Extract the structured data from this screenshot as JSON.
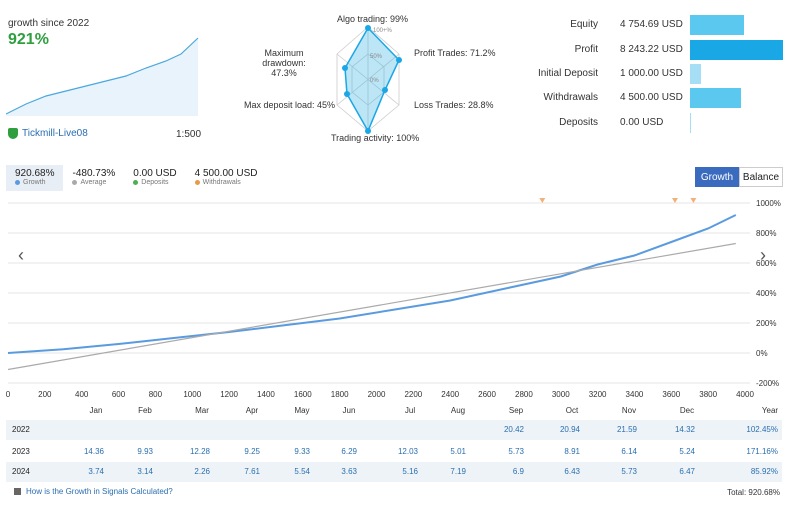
{
  "header": {
    "growth_since": "growth since 2022",
    "growth_value": "921%",
    "account_name": "Tickmill-Live08",
    "leverage": "1:500"
  },
  "radar": {
    "labels": {
      "algo": "Algo trading: 99%",
      "profit_trades": "Profit Trades: 71.2%",
      "loss_trades": "Loss Trades: 28.8%",
      "trading_activity": "Trading activity: 100%",
      "max_deposit_load": "Max deposit load: 45%",
      "max_drawdown": "Maximum drawdown:",
      "max_drawdown_val": "47.3%"
    },
    "ring_labels": [
      "100+%",
      "50%",
      "0%"
    ]
  },
  "stats": [
    {
      "label": "Equity",
      "value": "4 754.69 USD",
      "fraction": 0.58,
      "color": "#5bc8f0"
    },
    {
      "label": "Profit",
      "value": "8 243.22 USD",
      "fraction": 1.0,
      "color": "#1aa7e6"
    },
    {
      "label": "Initial Deposit",
      "value": "1 000.00 USD",
      "fraction": 0.12,
      "color": "#a6def5"
    },
    {
      "label": "Withdrawals",
      "value": "4 500.00 USD",
      "fraction": 0.55,
      "color": "#5bc8f0"
    },
    {
      "label": "Deposits",
      "value": "0.00 USD",
      "fraction": 0.0,
      "color": "#a6def5"
    }
  ],
  "summary": [
    {
      "value": "920.68%",
      "label": "Growth",
      "dot": "#5a9be0"
    },
    {
      "value": "-480.73%",
      "label": "Average",
      "dot": "#aaaaaa"
    },
    {
      "value": "0.00 USD",
      "label": "Deposits",
      "dot": "#4caf50"
    },
    {
      "value": "4 500.00 USD",
      "label": "Withdrawals",
      "dot": "#e69a4a"
    }
  ],
  "toggle": {
    "growth": "Growth",
    "balance": "Balance"
  },
  "chart_data": {
    "type": "line",
    "x_ticks": [
      0,
      200,
      400,
      600,
      800,
      1000,
      1200,
      1400,
      1600,
      1800,
      2000,
      2200,
      2400,
      2600,
      2800,
      3000,
      3200,
      3400,
      3600,
      3800,
      4000
    ],
    "y_ticks": [
      "1000%",
      "800%",
      "600%",
      "400%",
      "200%",
      "0%",
      "-200%"
    ],
    "xlim": [
      0,
      4000
    ],
    "ylim": [
      -200,
      1000
    ],
    "series": [
      {
        "color": "#5a9be0",
        "x": [
          0,
          300,
          600,
          900,
          1200,
          1500,
          1800,
          2100,
          2400,
          2700,
          3000,
          3200,
          3400,
          3600,
          3800,
          3950
        ],
        "y": [
          0,
          25,
          60,
          100,
          140,
          185,
          230,
          290,
          350,
          430,
          510,
          590,
          650,
          740,
          830,
          920
        ]
      },
      {
        "color": "#aaaaaa",
        "x": [
          0,
          3950
        ],
        "y": [
          -110,
          730
        ]
      }
    ],
    "withdrawal_markers_x": [
      2900,
      3620,
      3720
    ]
  },
  "monthly": {
    "months": [
      "Jan",
      "Feb",
      "Mar",
      "Apr",
      "May",
      "Jun",
      "Jul",
      "Aug",
      "Sep",
      "Oct",
      "Nov",
      "Dec",
      "Year"
    ],
    "rows": [
      {
        "year": "2022",
        "cells": [
          "",
          "",
          "",
          "",
          "",
          "",
          "",
          "",
          "20.42",
          "20.94",
          "21.59",
          "14.32",
          "102.45%"
        ]
      },
      {
        "year": "2023",
        "cells": [
          "14.36",
          "9.93",
          "12.28",
          "9.25",
          "9.33",
          "6.29",
          "12.03",
          "5.01",
          "5.73",
          "8.91",
          "6.14",
          "5.24",
          "171.16%"
        ]
      },
      {
        "year": "2024",
        "cells": [
          "3.74",
          "3.14",
          "2.26",
          "7.61",
          "5.54",
          "3.63",
          "5.16",
          "7.19",
          "6.9",
          "6.43",
          "5.73",
          "6.47",
          "85.92%"
        ]
      }
    ]
  },
  "footer": {
    "link": "How is the Growth in Signals Calculated?",
    "total": "Total: 920.68%"
  }
}
